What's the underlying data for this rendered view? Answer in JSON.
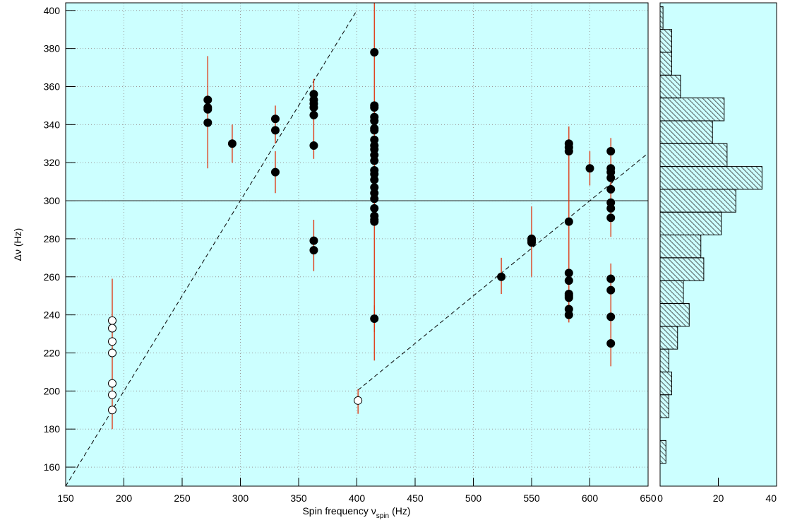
{
  "chart_data": [
    {
      "type": "scatter",
      "xlabel": [
        "Spin frequency ν",
        "spin",
        "(Hz)"
      ],
      "ylabel": "Δν (Hz)",
      "xlim": [
        150,
        650
      ],
      "ylim": [
        150,
        404
      ],
      "xticks": [
        150,
        200,
        250,
        300,
        350,
        400,
        450,
        500,
        550,
        600,
        650
      ],
      "yticks": [
        160,
        180,
        200,
        220,
        240,
        260,
        280,
        300,
        320,
        340,
        360,
        380,
        400
      ],
      "grid": true,
      "background": "#ccffff",
      "series": [
        {
          "marker": "filled",
          "color": "#000000",
          "x": [
            272,
            272,
            272,
            272,
            293,
            330,
            330,
            330,
            363,
            363,
            363,
            363,
            363,
            363,
            363,
            363,
            415,
            415,
            415,
            415,
            415,
            415,
            415,
            415,
            415,
            415,
            415,
            415,
            415,
            415,
            415,
            415,
            415,
            415,
            415,
            415,
            415,
            415,
            415,
            524,
            550,
            550,
            550,
            582,
            582,
            582,
            582,
            582,
            582,
            582,
            582,
            582,
            582,
            582,
            600,
            618,
            618,
            618,
            618,
            618,
            618,
            618,
            618,
            618,
            618,
            618,
            618
          ],
          "values": [
            353,
            349,
            348,
            341,
            330,
            343,
            337,
            315,
            356,
            353,
            351,
            349,
            345,
            329,
            279,
            274,
            378,
            350,
            349,
            344,
            342,
            338,
            337,
            332,
            329,
            327,
            324,
            321,
            316,
            314,
            311,
            307,
            304,
            301,
            296,
            292,
            290,
            289,
            238,
            260,
            280,
            279,
            278,
            330,
            328,
            326,
            289,
            262,
            258,
            251,
            250,
            249,
            243,
            240,
            317,
            326,
            317,
            315,
            312,
            306,
            299,
            296,
            291,
            259,
            253,
            239,
            225
          ]
        },
        {
          "marker": "open",
          "color": "#000000",
          "x": [
            190,
            190,
            190,
            190,
            190,
            190,
            190,
            401
          ],
          "values": [
            237,
            233,
            226,
            220,
            204,
            198,
            190,
            195
          ]
        }
      ],
      "error_bars": {
        "color": "#e0300a",
        "x": [
          190,
          272,
          293,
          330,
          330,
          363,
          363,
          401,
          415,
          415,
          524,
          550,
          582,
          600,
          618,
          618
        ],
        "low": [
          180,
          317,
          320,
          330,
          304,
          322,
          263,
          188,
          216,
          231,
          251,
          260,
          236,
          308,
          281,
          213
        ],
        "high": [
          259,
          376,
          340,
          350,
          326,
          364,
          290,
          201,
          404,
          245,
          270,
          297,
          339,
          326,
          333,
          267
        ]
      },
      "lines": [
        {
          "style": "dashed",
          "x": [
            150,
            400
          ],
          "values": [
            150,
            400
          ]
        },
        {
          "style": "dashed",
          "x": [
            401,
            650
          ],
          "values": [
            200.5,
            325
          ]
        }
      ],
      "hline": 300
    },
    {
      "type": "histogram",
      "orientation": "horizontal",
      "bins": [
        162,
        174,
        186,
        198,
        210,
        222,
        234,
        246,
        258,
        270,
        282,
        294,
        306,
        318,
        330,
        342,
        354,
        366,
        378,
        390,
        402
      ],
      "counts": [
        2,
        0,
        3,
        4,
        3,
        6,
        10,
        8,
        15,
        14,
        21,
        26,
        35,
        23,
        18,
        22,
        7,
        4,
        4,
        1
      ],
      "xlim": [
        0,
        40
      ],
      "xticks": [
        0,
        20,
        40
      ],
      "ylim": [
        150,
        404
      ],
      "background": "#ccffff"
    }
  ]
}
